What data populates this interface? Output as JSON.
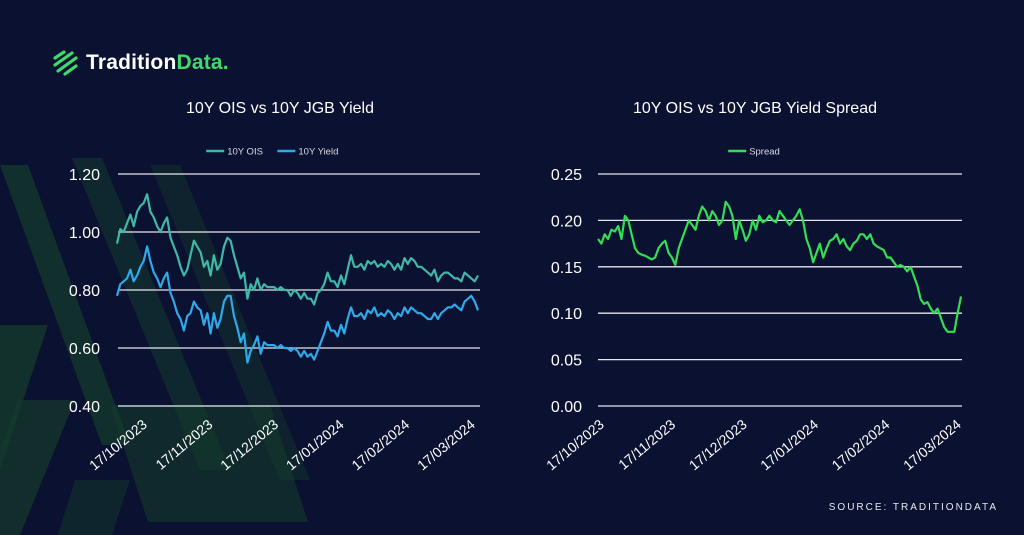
{
  "brand": {
    "name_part1": "Tradition",
    "name_part2": "Data."
  },
  "source": "SOURCE: TRADITIONDATA",
  "colors": {
    "background": "#0b1131",
    "ois": "#3fb8a8",
    "yield": "#2ea9ea",
    "spread": "#33dd55",
    "brand_green": "#3ddc6a"
  },
  "chart_data": [
    {
      "type": "line",
      "title": "10Y OIS vs 10Y JGB Yield",
      "ylim": [
        0.4,
        1.2
      ],
      "yticks": [
        "0.40",
        "0.60",
        "0.80",
        "1.00",
        "1.20"
      ],
      "xticks": [
        "17/10/2023",
        "17/11/2023",
        "17/12/2023",
        "17/01/2024",
        "17/02/2024",
        "17/03/2024"
      ],
      "legend_position": "top",
      "grid": true,
      "series": [
        {
          "name": "10Y OIS",
          "color": "#3fb8a8",
          "values": [
            0.96,
            1.01,
            1.0,
            1.03,
            1.06,
            1.02,
            1.07,
            1.09,
            1.1,
            1.13,
            1.07,
            1.05,
            1.02,
            1.0,
            1.03,
            1.05,
            0.98,
            0.95,
            0.92,
            0.88,
            0.85,
            0.87,
            0.92,
            0.97,
            0.95,
            0.93,
            0.88,
            0.9,
            0.85,
            0.92,
            0.87,
            0.89,
            0.95,
            0.98,
            0.97,
            0.92,
            0.88,
            0.84,
            0.86,
            0.77,
            0.82,
            0.8,
            0.84,
            0.8,
            0.82,
            0.81,
            0.81,
            0.81,
            0.8,
            0.81,
            0.8,
            0.8,
            0.78,
            0.8,
            0.79,
            0.77,
            0.79,
            0.77,
            0.77,
            0.75,
            0.79,
            0.8,
            0.82,
            0.86,
            0.83,
            0.83,
            0.81,
            0.85,
            0.82,
            0.87,
            0.92,
            0.88,
            0.88,
            0.89,
            0.87,
            0.9,
            0.89,
            0.9,
            0.88,
            0.89,
            0.88,
            0.9,
            0.89,
            0.87,
            0.89,
            0.87,
            0.91,
            0.89,
            0.91,
            0.9,
            0.88,
            0.88,
            0.87,
            0.86,
            0.85,
            0.87,
            0.83,
            0.85,
            0.86,
            0.86,
            0.85,
            0.84,
            0.84,
            0.83,
            0.86,
            0.85,
            0.84,
            0.83,
            0.85
          ]
        },
        {
          "name": "10Y Yield",
          "color": "#2ea9ea",
          "values": [
            0.78,
            0.82,
            0.83,
            0.84,
            0.87,
            0.83,
            0.85,
            0.88,
            0.9,
            0.95,
            0.9,
            0.86,
            0.84,
            0.81,
            0.84,
            0.86,
            0.79,
            0.76,
            0.72,
            0.7,
            0.66,
            0.71,
            0.72,
            0.76,
            0.74,
            0.73,
            0.68,
            0.72,
            0.65,
            0.72,
            0.67,
            0.7,
            0.76,
            0.78,
            0.78,
            0.71,
            0.67,
            0.62,
            0.65,
            0.55,
            0.59,
            0.61,
            0.64,
            0.58,
            0.62,
            0.61,
            0.61,
            0.61,
            0.6,
            0.61,
            0.6,
            0.6,
            0.59,
            0.6,
            0.59,
            0.57,
            0.59,
            0.57,
            0.58,
            0.56,
            0.59,
            0.62,
            0.65,
            0.69,
            0.66,
            0.66,
            0.64,
            0.68,
            0.65,
            0.7,
            0.74,
            0.71,
            0.71,
            0.72,
            0.7,
            0.73,
            0.72,
            0.74,
            0.71,
            0.72,
            0.71,
            0.73,
            0.72,
            0.7,
            0.72,
            0.71,
            0.74,
            0.72,
            0.74,
            0.73,
            0.72,
            0.72,
            0.71,
            0.7,
            0.7,
            0.72,
            0.7,
            0.72,
            0.73,
            0.74,
            0.74,
            0.75,
            0.74,
            0.73,
            0.76,
            0.77,
            0.78,
            0.76,
            0.73
          ]
        }
      ]
    },
    {
      "type": "line",
      "title": "10Y OIS vs 10Y JGB Yield Spread",
      "ylim": [
        0.0,
        0.25
      ],
      "yticks": [
        "0.00",
        "0.05",
        "0.10",
        "0.15",
        "0.20",
        "0.25"
      ],
      "xticks": [
        "17/10/2023",
        "17/11/2023",
        "17/12/2023",
        "17/01/2024",
        "17/02/2024",
        "17/03/2024"
      ],
      "legend_position": "top",
      "grid": true,
      "series": [
        {
          "name": "Spread",
          "color": "#33dd55",
          "values": [
            0.18,
            0.175,
            0.185,
            0.18,
            0.19,
            0.188,
            0.194,
            0.18,
            0.205,
            0.2,
            0.185,
            0.17,
            0.165,
            0.163,
            0.162,
            0.16,
            0.158,
            0.16,
            0.17,
            0.175,
            0.178,
            0.165,
            0.16,
            0.152,
            0.17,
            0.18,
            0.19,
            0.2,
            0.195,
            0.19,
            0.205,
            0.215,
            0.21,
            0.2,
            0.21,
            0.205,
            0.195,
            0.2,
            0.22,
            0.215,
            0.205,
            0.18,
            0.2,
            0.19,
            0.178,
            0.185,
            0.2,
            0.19,
            0.205,
            0.198,
            0.2,
            0.205,
            0.2,
            0.198,
            0.21,
            0.205,
            0.2,
            0.195,
            0.2,
            0.205,
            0.212,
            0.2,
            0.18,
            0.17,
            0.155,
            0.165,
            0.175,
            0.16,
            0.17,
            0.178,
            0.18,
            0.185,
            0.175,
            0.18,
            0.172,
            0.168,
            0.175,
            0.178,
            0.185,
            0.185,
            0.18,
            0.185,
            0.175,
            0.172,
            0.17,
            0.168,
            0.16,
            0.16,
            0.155,
            0.15,
            0.152,
            0.15,
            0.145,
            0.15,
            0.14,
            0.13,
            0.115,
            0.11,
            0.112,
            0.105,
            0.1,
            0.105,
            0.095,
            0.085,
            0.08,
            0.08,
            0.08,
            0.1,
            0.118
          ]
        }
      ]
    }
  ]
}
